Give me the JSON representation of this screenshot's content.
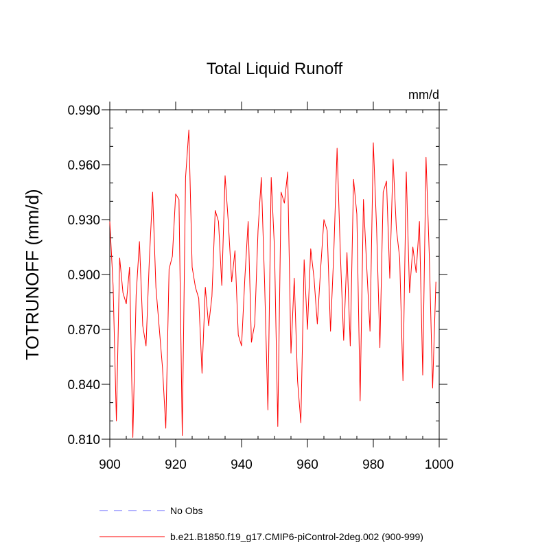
{
  "chart_data": {
    "type": "line",
    "title": "Total Liquid Runoff",
    "units": "mm/d",
    "xlabel": "",
    "ylabel": "TOTRUNOFF  (mm/d)",
    "xlim": [
      900,
      1000
    ],
    "ylim": [
      0.81,
      0.99
    ],
    "xticks": [
      "900",
      "920",
      "940",
      "960",
      "980",
      "1000"
    ],
    "yticks": [
      "0.990",
      "0.960",
      "0.930",
      "0.900",
      "0.870",
      "0.840",
      "0.810"
    ],
    "legend": [
      {
        "label": "No Obs",
        "color": "#6666ff",
        "style": "dashed"
      },
      {
        "label": "b.e21.B1850.f19_g17.CMIP6-piControl-2deg.002 (900-999)",
        "color": "#ff0000",
        "style": "solid"
      }
    ],
    "series": [
      {
        "name": "b.e21.B1850.f19_g17.CMIP6-piControl-2deg.002 (900-999)",
        "color": "#ff0000",
        "x": [
          900,
          901,
          902,
          903,
          904,
          905,
          906,
          907,
          908,
          909,
          910,
          911,
          912,
          913,
          914,
          915,
          916,
          917,
          918,
          919,
          920,
          921,
          922,
          923,
          924,
          925,
          926,
          927,
          928,
          929,
          930,
          931,
          932,
          933,
          934,
          935,
          936,
          937,
          938,
          939,
          940,
          941,
          942,
          943,
          944,
          945,
          946,
          947,
          948,
          949,
          950,
          951,
          952,
          953,
          954,
          955,
          956,
          957,
          958,
          959,
          960,
          961,
          962,
          963,
          964,
          965,
          966,
          967,
          968,
          969,
          970,
          971,
          972,
          973,
          974,
          975,
          976,
          977,
          978,
          979,
          980,
          981,
          982,
          983,
          984,
          985,
          986,
          987,
          988,
          989,
          990,
          991,
          992,
          993,
          994,
          995,
          996,
          997,
          998,
          999
        ],
        "values": [
          0.929,
          0.894,
          0.82,
          0.909,
          0.89,
          0.884,
          0.904,
          0.811,
          0.889,
          0.918,
          0.872,
          0.861,
          0.908,
          0.945,
          0.893,
          0.871,
          0.849,
          0.816,
          0.903,
          0.91,
          0.944,
          0.941,
          0.812,
          0.953,
          0.979,
          0.904,
          0.893,
          0.887,
          0.846,
          0.893,
          0.872,
          0.888,
          0.935,
          0.929,
          0.894,
          0.954,
          0.928,
          0.896,
          0.913,
          0.867,
          0.861,
          0.898,
          0.929,
          0.863,
          0.873,
          0.924,
          0.953,
          0.895,
          0.826,
          0.953,
          0.914,
          0.817,
          0.945,
          0.939,
          0.956,
          0.857,
          0.898,
          0.842,
          0.819,
          0.908,
          0.87,
          0.914,
          0.898,
          0.873,
          0.903,
          0.93,
          0.924,
          0.869,
          0.912,
          0.969,
          0.911,
          0.864,
          0.912,
          0.861,
          0.952,
          0.933,
          0.831,
          0.941,
          0.904,
          0.869,
          0.972,
          0.925,
          0.86,
          0.945,
          0.951,
          0.898,
          0.963,
          0.925,
          0.909,
          0.842,
          0.956,
          0.89,
          0.915,
          0.901,
          0.929,
          0.845,
          0.964,
          0.91,
          0.838,
          0.896
        ]
      }
    ]
  }
}
